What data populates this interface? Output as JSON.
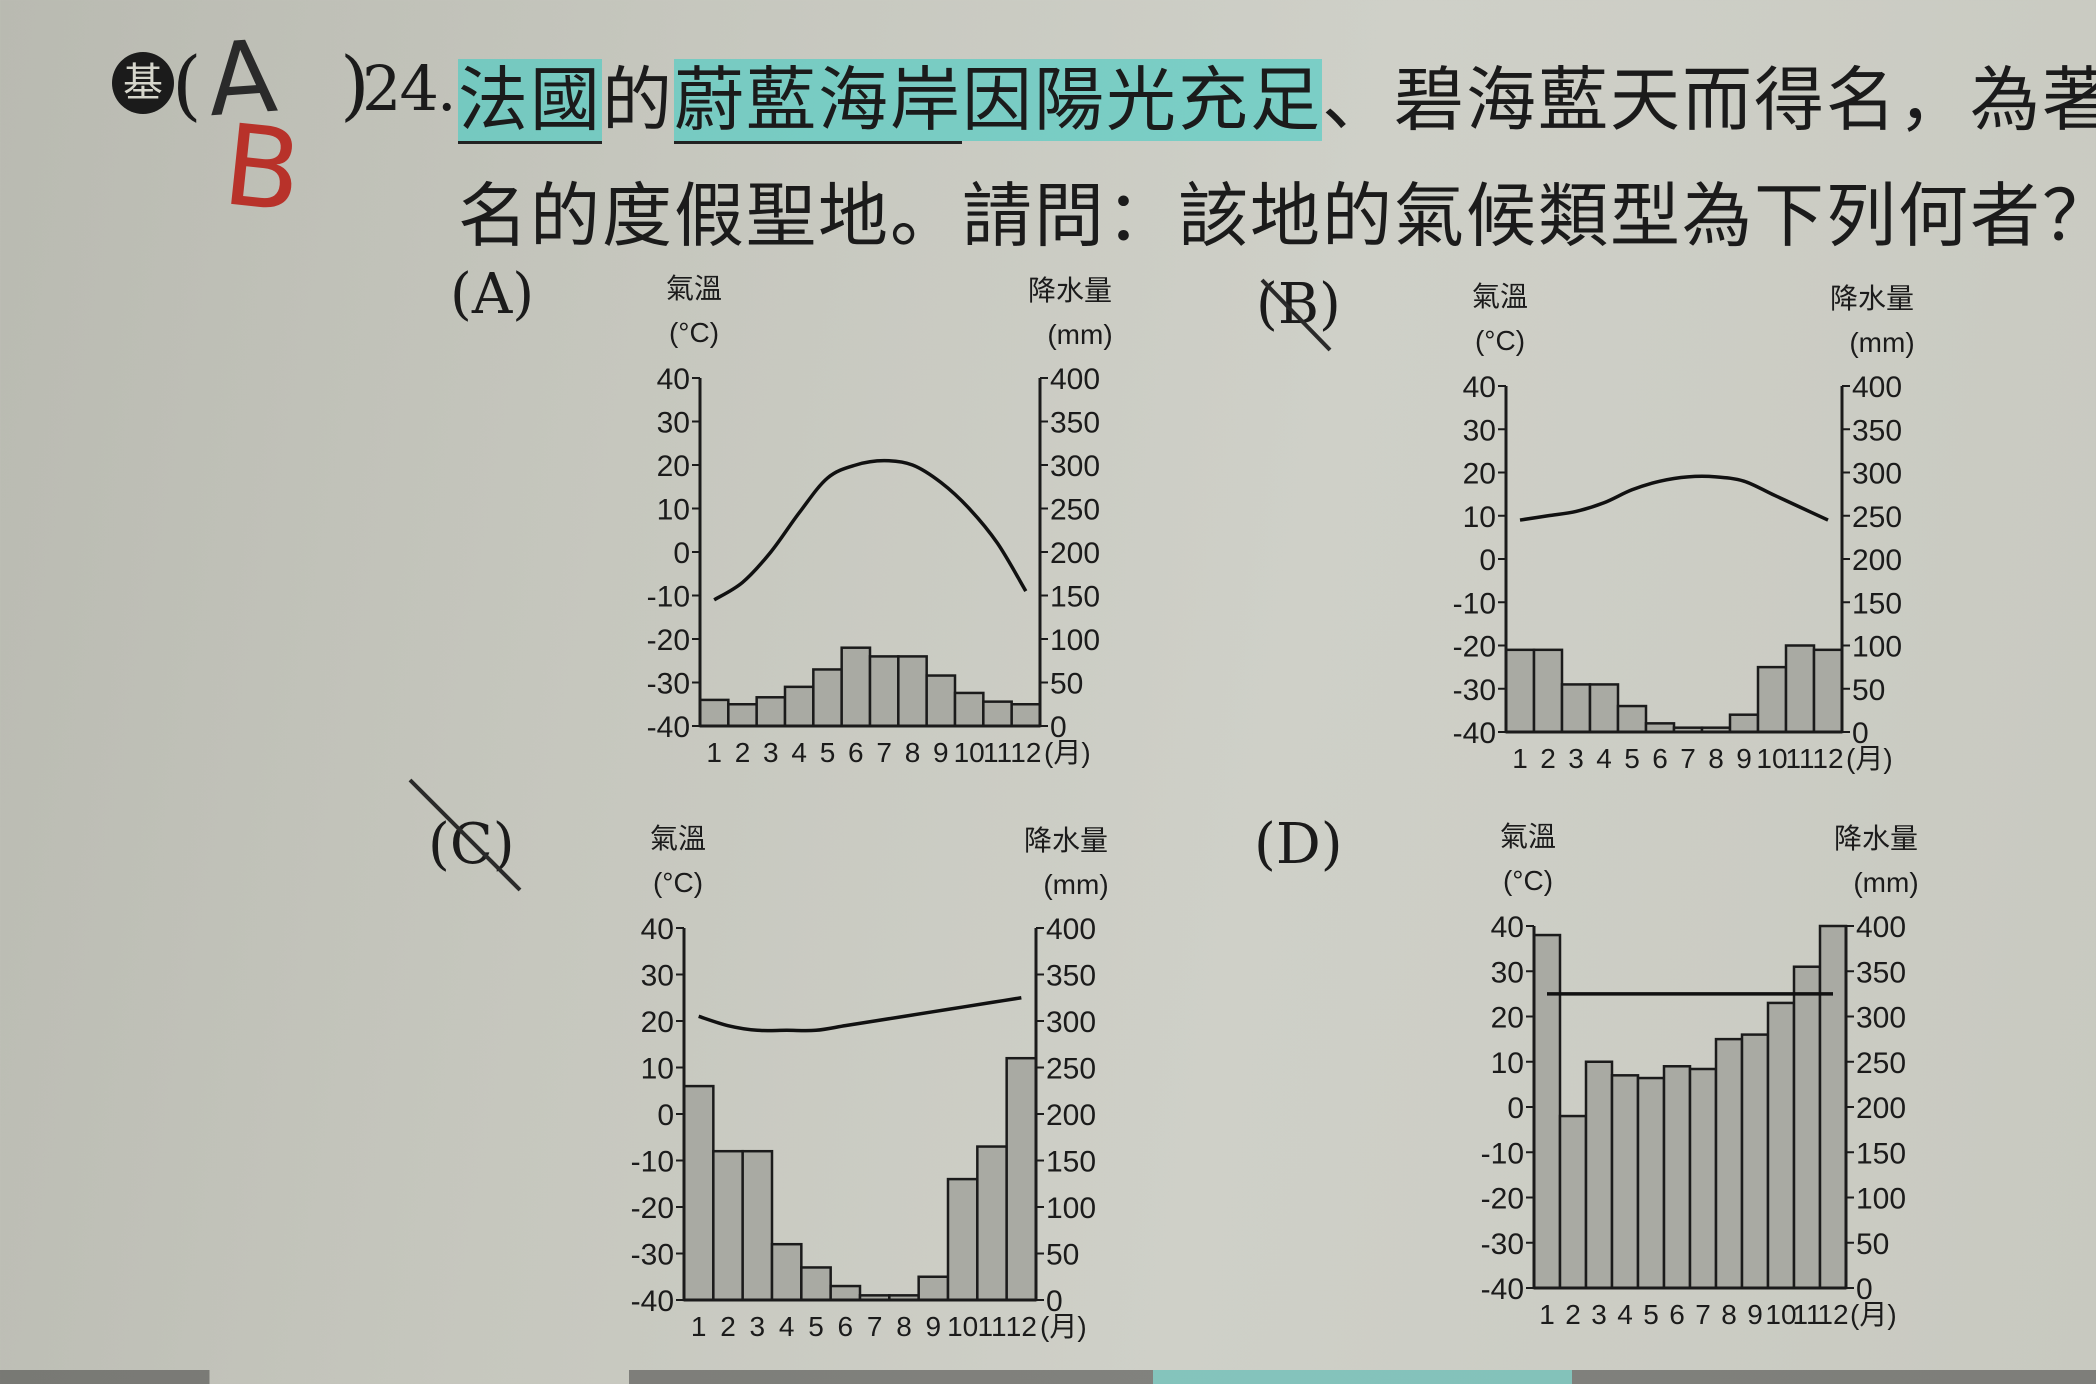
{
  "question": {
    "badge": "基",
    "paren_open": "(",
    "paren_close": ")",
    "handwritten_answer": "A",
    "handwritten_correction": "B",
    "number": "24.",
    "line1_p1": "法國",
    "line1_p2": "的",
    "line1_p3": "蔚藍海岸",
    "line1_p4": "因陽光充足",
    "line1_p5": "、碧海藍天而得名，為著",
    "line2": "名的度假聖地。請問：該地的氣候類型為下列何者？"
  },
  "options": [
    {
      "label": "(A)",
      "crossed": false
    },
    {
      "label": "(B)",
      "crossed": true
    },
    {
      "label": "(C)",
      "crossed": true
    },
    {
      "label": "(D)",
      "crossed": false
    }
  ],
  "axis_text": {
    "left_title": "氣溫",
    "left_unit": "(°C)",
    "right_title": "降水量",
    "right_unit": "(mm)",
    "month_unit": "(月)"
  },
  "chart_data": [
    {
      "type": "bar",
      "option": "A",
      "categories": [
        "1",
        "2",
        "3",
        "4",
        "5",
        "6",
        "7",
        "8",
        "9",
        "10",
        "11",
        "12"
      ],
      "temperature_c": [
        -11,
        -7,
        0,
        9,
        17,
        20,
        21,
        20,
        16,
        10,
        2,
        -9
      ],
      "precipitation_mm": [
        30,
        25,
        33,
        45,
        65,
        90,
        80,
        80,
        58,
        38,
        28,
        25
      ],
      "left_ticks": [
        "40",
        "30",
        "20",
        "10",
        "0",
        "-10",
        "-20",
        "-30",
        "-40"
      ],
      "right_ticks": [
        "400",
        "350",
        "300",
        "250",
        "200",
        "150",
        "100",
        "50",
        "0"
      ],
      "ylim_temp": [
        -40,
        40
      ],
      "ylim_precip": [
        0,
        400
      ]
    },
    {
      "type": "bar",
      "option": "B",
      "categories": [
        "1",
        "2",
        "3",
        "4",
        "5",
        "6",
        "7",
        "8",
        "9",
        "10",
        "11",
        "12"
      ],
      "temperature_c": [
        9,
        10,
        11,
        13,
        16,
        18,
        19,
        19,
        18,
        15,
        12,
        9
      ],
      "precipitation_mm": [
        95,
        95,
        55,
        55,
        30,
        10,
        5,
        5,
        20,
        75,
        100,
        95
      ],
      "left_ticks": [
        "40",
        "30",
        "20",
        "10",
        "0",
        "-10",
        "-20",
        "-30",
        "-40"
      ],
      "right_ticks": [
        "400",
        "350",
        "300",
        "250",
        "200",
        "150",
        "100",
        "50",
        "0"
      ],
      "ylim_temp": [
        -40,
        40
      ],
      "ylim_precip": [
        0,
        400
      ]
    },
    {
      "type": "bar",
      "option": "C",
      "categories": [
        "1",
        "2",
        "3",
        "4",
        "5",
        "6",
        "7",
        "8",
        "9",
        "10",
        "11",
        "12"
      ],
      "temperature_c": [
        21,
        19,
        18,
        18,
        18,
        19,
        20,
        21,
        22,
        23,
        24,
        25
      ],
      "precipitation_mm": [
        230,
        160,
        160,
        60,
        35,
        15,
        5,
        5,
        25,
        130,
        165,
        260
      ],
      "left_ticks": [
        "40",
        "30",
        "20",
        "10",
        "0",
        "-10",
        "-20",
        "-30",
        "-40"
      ],
      "right_ticks": [
        "400",
        "350",
        "300",
        "250",
        "200",
        "150",
        "100",
        "50",
        "0"
      ],
      "ylim_temp": [
        -40,
        40
      ],
      "ylim_precip": [
        0,
        400
      ]
    },
    {
      "type": "bar",
      "option": "D",
      "categories": [
        "1",
        "2",
        "3",
        "4",
        "5",
        "6",
        "7",
        "8",
        "9",
        "10",
        "11",
        "12"
      ],
      "temperature_c": [
        25,
        25,
        25,
        25,
        25,
        25,
        25,
        25,
        25,
        25,
        25,
        25
      ],
      "precipitation_mm": [
        390,
        190,
        250,
        235,
        232,
        245,
        242,
        275,
        280,
        315,
        355,
        400
      ],
      "left_ticks": [
        "40",
        "30",
        "20",
        "10",
        "0",
        "-10",
        "-20",
        "-30",
        "-40"
      ],
      "right_ticks": [
        "400",
        "350",
        "300",
        "250",
        "200",
        "150",
        "100",
        "50",
        "0"
      ],
      "ylim_temp": [
        -40,
        40
      ],
      "ylim_precip": [
        0,
        400
      ]
    }
  ]
}
